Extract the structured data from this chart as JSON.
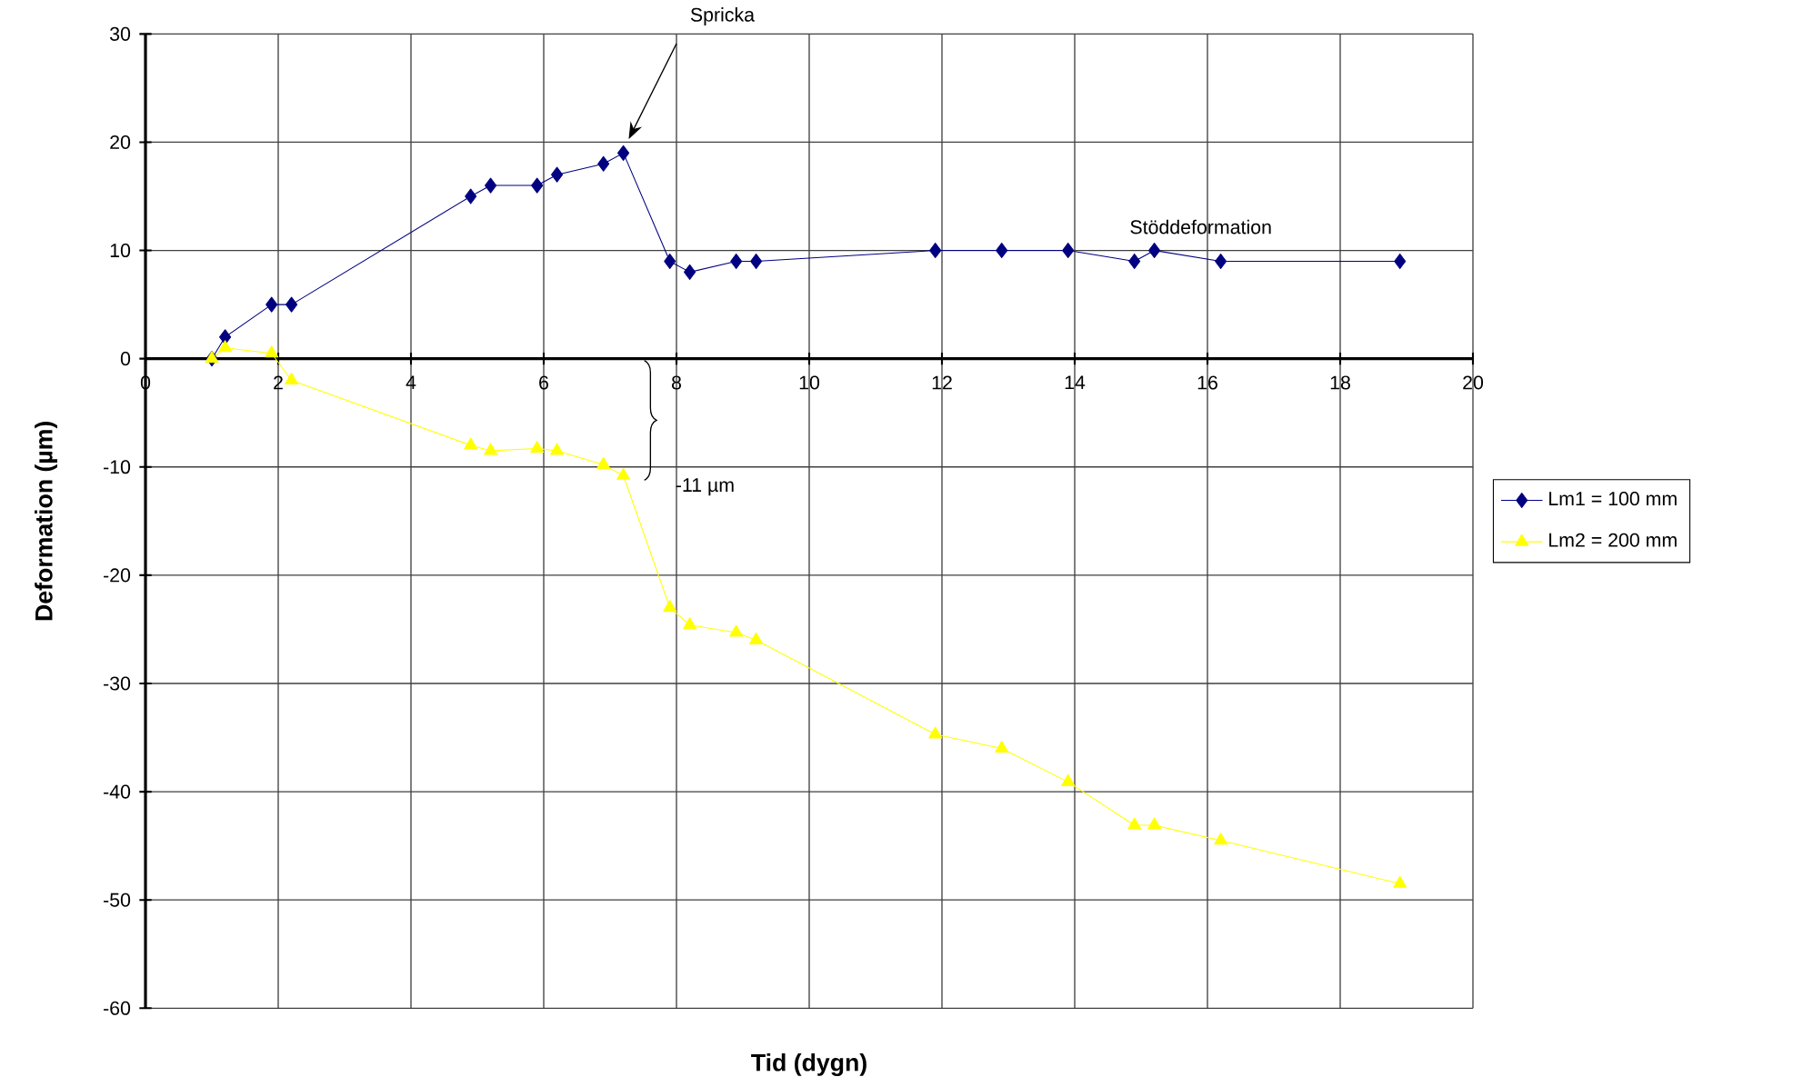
{
  "chart_data": {
    "type": "line",
    "xlabel": "Tid (dygn)",
    "ylabel": "Deformation (µm)",
    "xlim": [
      0,
      20
    ],
    "xticks": [
      0,
      2,
      4,
      6,
      8,
      10,
      12,
      14,
      16,
      18,
      20
    ],
    "ylim": [
      -60,
      30
    ],
    "yticks": [
      -60,
      -50,
      -40,
      -30,
      -20,
      -10,
      0,
      10,
      20,
      30
    ],
    "grid": true,
    "legend": "right",
    "series": [
      {
        "name": "Lm1 = 100 mm",
        "color": "#000080",
        "marker": "diamond",
        "x": [
          1.0,
          1.2,
          1.9,
          2.2,
          4.9,
          5.2,
          5.9,
          6.2,
          6.9,
          7.2,
          7.9,
          8.2,
          8.9,
          9.2,
          11.9,
          12.9,
          13.9,
          14.9,
          15.2,
          16.2,
          18.9
        ],
        "values": [
          0,
          2,
          5,
          5,
          15,
          16,
          16,
          17,
          18,
          19,
          9,
          8,
          9,
          9,
          10,
          10,
          10,
          9,
          10,
          9,
          9
        ]
      },
      {
        "name": "Lm2 = 200 mm",
        "color": "#ffff00",
        "marker": "triangle",
        "x": [
          1.0,
          1.2,
          1.9,
          2.2,
          4.9,
          5.2,
          5.9,
          6.2,
          6.9,
          7.2,
          7.9,
          8.2,
          8.9,
          9.2,
          11.9,
          12.9,
          13.9,
          14.9,
          15.2,
          16.2,
          18.9
        ],
        "values": [
          0,
          1,
          0.5,
          -2,
          -8,
          -8.5,
          -8.3,
          -8.5,
          -9.8,
          -10.8,
          -23,
          -24.6,
          -25.3,
          -26,
          -34.7,
          -36,
          -39.1,
          -43.1,
          -43.1,
          -44.5,
          -48.5
        ]
      }
    ],
    "annotations": [
      "Spricka",
      "-11 µm",
      "Stöddeformation"
    ]
  }
}
